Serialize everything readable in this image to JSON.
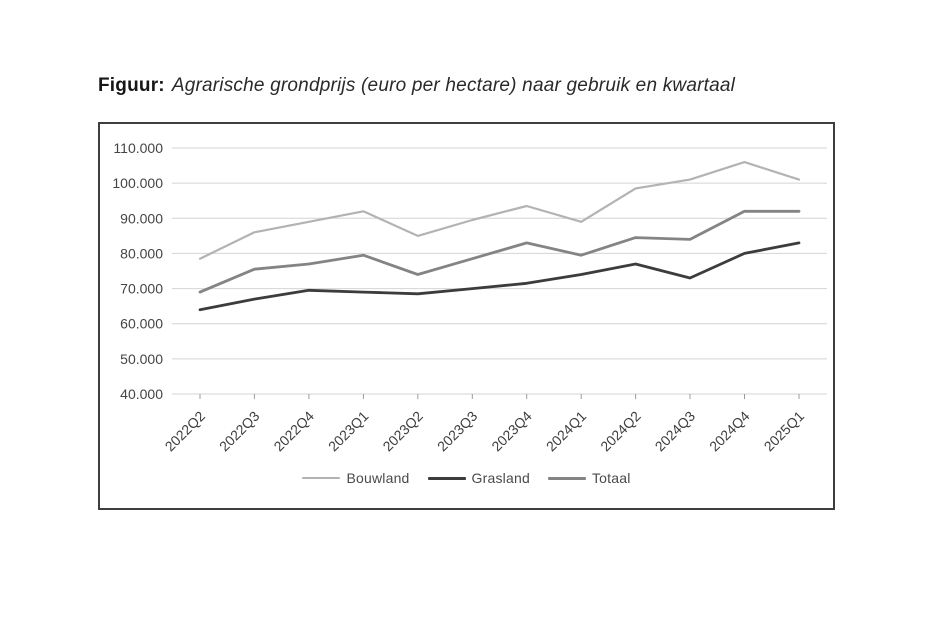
{
  "figure": {
    "label": "Figuur:",
    "title": "Agrarische grondprijs (euro per hectare) naar gebruik en kwartaal"
  },
  "chart_data": {
    "type": "line",
    "title": "Agrarische grondprijs (euro per hectare) naar gebruik en kwartaal",
    "xlabel": "",
    "ylabel": "",
    "grid": true,
    "legend_position": "bottom",
    "ylim": [
      40000,
      110000
    ],
    "ytick_step": 10000,
    "yticks": [
      {
        "value": 110000,
        "label": "110.000"
      },
      {
        "value": 100000,
        "label": "100.000"
      },
      {
        "value": 90000,
        "label": "90.000"
      },
      {
        "value": 80000,
        "label": "80.000"
      },
      {
        "value": 70000,
        "label": "70.000"
      },
      {
        "value": 60000,
        "label": "60.000"
      },
      {
        "value": 50000,
        "label": "50.000"
      },
      {
        "value": 40000,
        "label": "40.000"
      }
    ],
    "categories": [
      "2022Q2",
      "2022Q3",
      "2022Q4",
      "2023Q1",
      "2023Q2",
      "2023Q3",
      "2023Q4",
      "2024Q1",
      "2024Q2",
      "2024Q3",
      "2024Q4",
      "2025Q1"
    ],
    "series": [
      {
        "name": "Bouwland",
        "color": "#b3b3b3",
        "line_width": 2.2,
        "values": [
          78500,
          86000,
          89000,
          92000,
          85000,
          89500,
          93500,
          89000,
          98500,
          101000,
          106000,
          101000
        ]
      },
      {
        "name": "Grasland",
        "color": "#3c3c3c",
        "line_width": 2.8,
        "values": [
          64000,
          67000,
          69500,
          69000,
          68500,
          70000,
          71500,
          74000,
          77000,
          73000,
          80000,
          83000
        ]
      },
      {
        "name": "Totaal",
        "color": "#848484",
        "line_width": 2.8,
        "values": [
          69000,
          75500,
          77000,
          79500,
          74000,
          78500,
          83000,
          79500,
          84500,
          84000,
          92000,
          92000
        ]
      }
    ]
  }
}
